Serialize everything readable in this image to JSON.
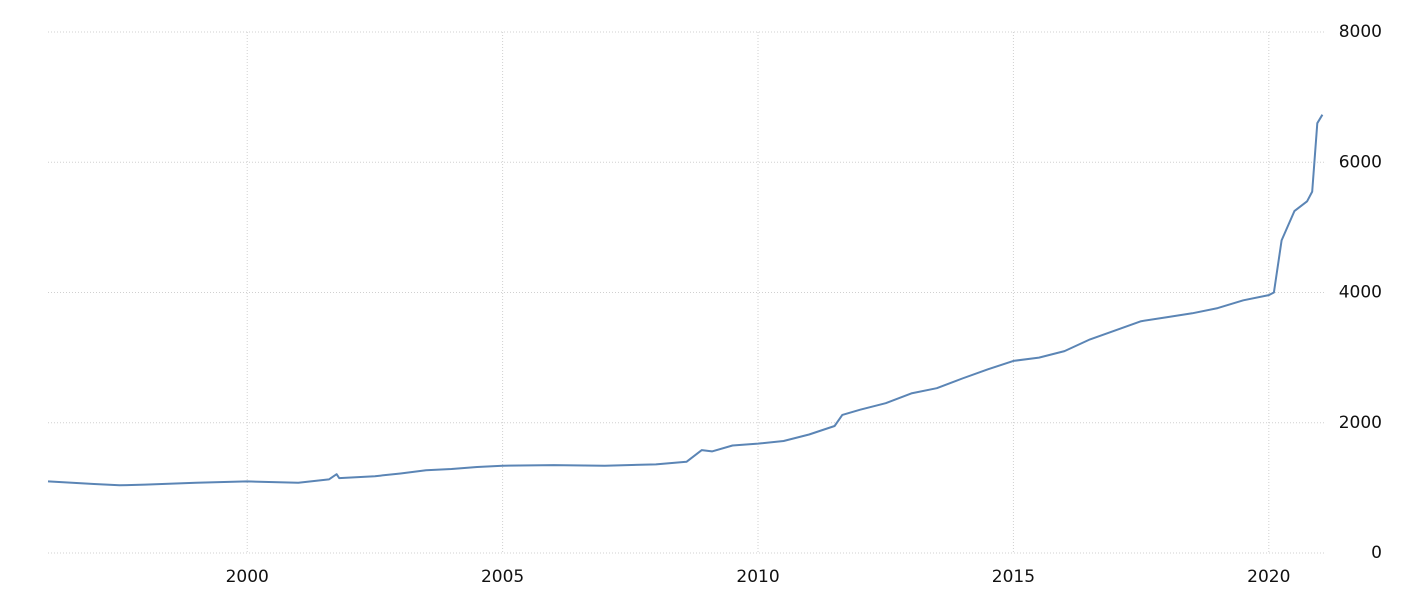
{
  "chart_data": {
    "type": "line",
    "x": [
      1996.1,
      1997,
      1997.5,
      1998,
      1999,
      2000,
      2001,
      2001.6,
      2001.75,
      2001.8,
      2002.5,
      2003,
      2003.5,
      2004,
      2004.5,
      2005,
      2006,
      2007,
      2008,
      2008.6,
      2008.9,
      2009.1,
      2009.5,
      2010,
      2010.5,
      2011,
      2011.5,
      2011.65,
      2012,
      2012.5,
      2013,
      2013.5,
      2014,
      2014.5,
      2015,
      2015.5,
      2016,
      2016.5,
      2017,
      2017.5,
      2018,
      2018.5,
      2019,
      2019.5,
      2020,
      2020.1,
      2020.25,
      2020.5,
      2020.75,
      2020.85,
      2020.95,
      2021.05
    ],
    "series": [
      {
        "color": "#5b85b5",
        "values": [
          1100,
          1060,
          1040,
          1050,
          1080,
          1100,
          1080,
          1130,
          1210,
          1150,
          1180,
          1220,
          1270,
          1290,
          1320,
          1340,
          1350,
          1340,
          1360,
          1400,
          1580,
          1560,
          1650,
          1680,
          1720,
          1820,
          1950,
          2120,
          2200,
          2300,
          2450,
          2530,
          2680,
          2820,
          2950,
          3000,
          3100,
          3280,
          3420,
          3560,
          3620,
          3680,
          3760,
          3880,
          3960,
          4000,
          4800,
          5250,
          5400,
          5550,
          6600,
          6730
        ]
      }
    ],
    "xlim": [
      1996.1,
      2021.1
    ],
    "xticks": [
      2000,
      2005,
      2010,
      2015,
      2020
    ],
    "ylim": [
      0,
      8000
    ],
    "yticks": [
      0,
      2000,
      4000,
      6000,
      8000
    ],
    "grid": true
  }
}
